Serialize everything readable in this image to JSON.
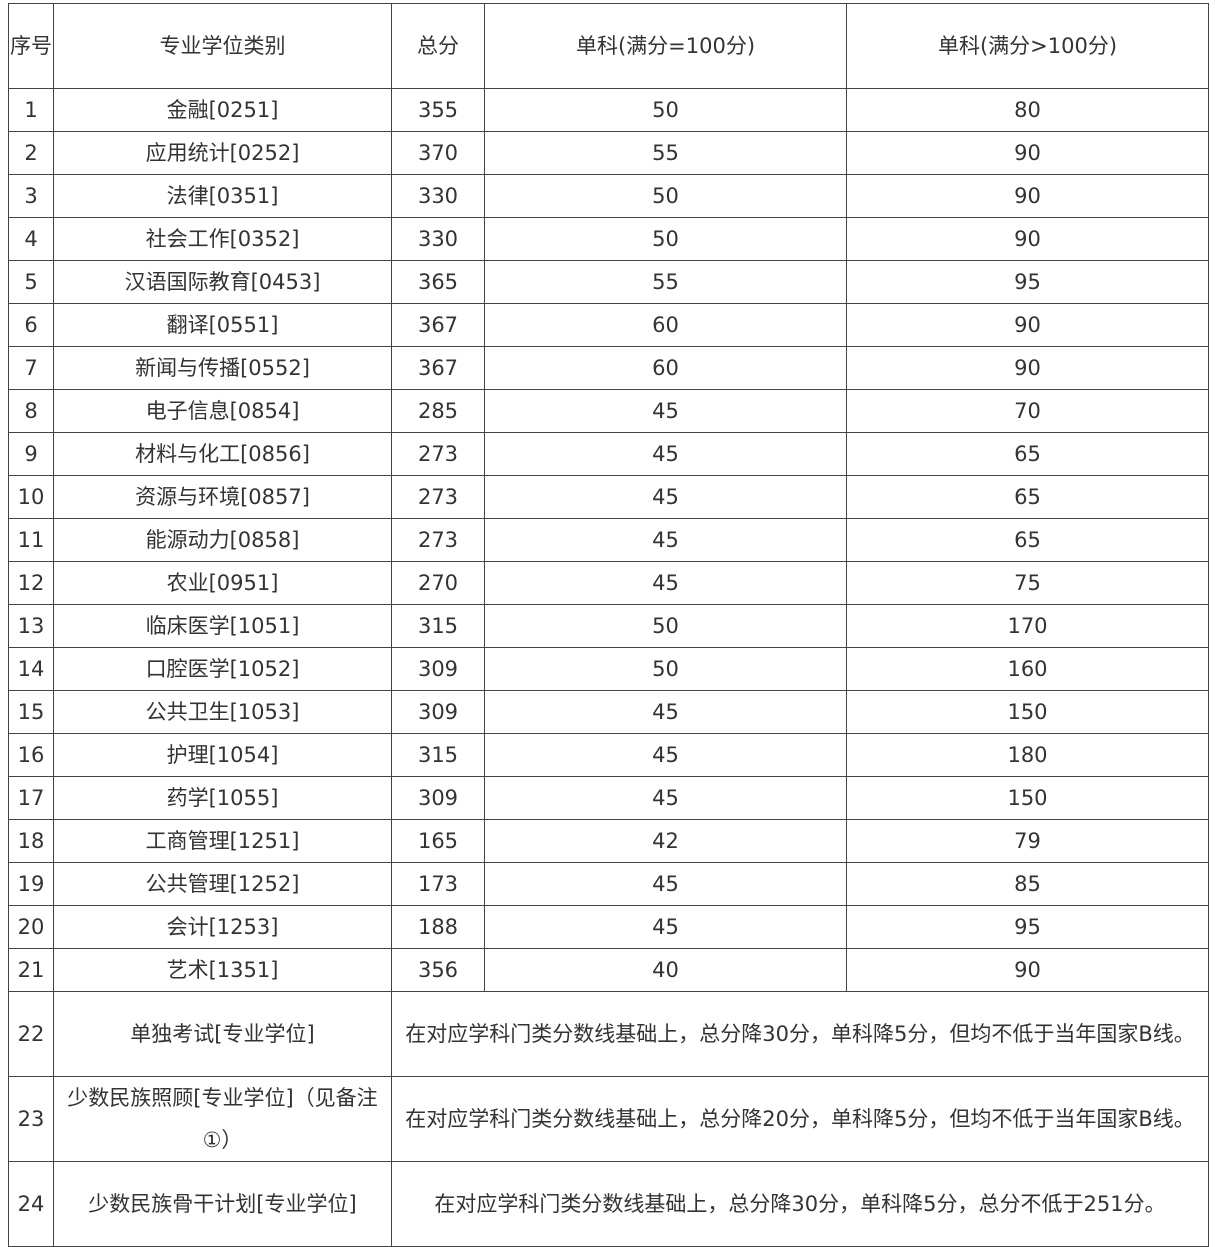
{
  "headers": {
    "idx": "序号",
    "category": "专业学位类别",
    "total": "总分",
    "single100": "单科(满分=100分)",
    "single_over100": "单科(满分>100分)"
  },
  "rows": [
    {
      "idx": "1",
      "category": "金融[0251]",
      "total": "355",
      "s1": "50",
      "s2": "80"
    },
    {
      "idx": "2",
      "category": "应用统计[0252]",
      "total": "370",
      "s1": "55",
      "s2": "90"
    },
    {
      "idx": "3",
      "category": "法律[0351]",
      "total": "330",
      "s1": "50",
      "s2": "90"
    },
    {
      "idx": "4",
      "category": "社会工作[0352]",
      "total": "330",
      "s1": "50",
      "s2": "90"
    },
    {
      "idx": "5",
      "category": "汉语国际教育[0453]",
      "total": "365",
      "s1": "55",
      "s2": "95"
    },
    {
      "idx": "6",
      "category": "翻译[0551]",
      "total": "367",
      "s1": "60",
      "s2": "90"
    },
    {
      "idx": "7",
      "category": "新闻与传播[0552]",
      "total": "367",
      "s1": "60",
      "s2": "90"
    },
    {
      "idx": "8",
      "category": "电子信息[0854]",
      "total": "285",
      "s1": "45",
      "s2": "70"
    },
    {
      "idx": "9",
      "category": "材料与化工[0856]",
      "total": "273",
      "s1": "45",
      "s2": "65"
    },
    {
      "idx": "10",
      "category": "资源与环境[0857]",
      "total": "273",
      "s1": "45",
      "s2": "65"
    },
    {
      "idx": "11",
      "category": "能源动力[0858]",
      "total": "273",
      "s1": "45",
      "s2": "65"
    },
    {
      "idx": "12",
      "category": "农业[0951]",
      "total": "270",
      "s1": "45",
      "s2": "75"
    },
    {
      "idx": "13",
      "category": "临床医学[1051]",
      "total": "315",
      "s1": "50",
      "s2": "170"
    },
    {
      "idx": "14",
      "category": "口腔医学[1052]",
      "total": "309",
      "s1": "50",
      "s2": "160"
    },
    {
      "idx": "15",
      "category": "公共卫生[1053]",
      "total": "309",
      "s1": "45",
      "s2": "150"
    },
    {
      "idx": "16",
      "category": "护理[1054]",
      "total": "315",
      "s1": "45",
      "s2": "180"
    },
    {
      "idx": "17",
      "category": "药学[1055]",
      "total": "309",
      "s1": "45",
      "s2": "150"
    },
    {
      "idx": "18",
      "category": "工商管理[1251]",
      "total": "165",
      "s1": "42",
      "s2": "79"
    },
    {
      "idx": "19",
      "category": "公共管理[1252]",
      "total": "173",
      "s1": "45",
      "s2": "85"
    },
    {
      "idx": "20",
      "category": "会计[1253]",
      "total": "188",
      "s1": "45",
      "s2": "95"
    },
    {
      "idx": "21",
      "category": "艺术[1351]",
      "total": "356",
      "s1": "40",
      "s2": "90"
    }
  ],
  "special": [
    {
      "idx": "22",
      "category": "单独考试[专业学位]",
      "note": "在对应学科门类分数线基础上，总分降30分，单科降5分，但均不低于当年国家B线。"
    },
    {
      "idx": "23",
      "category": "少数民族照顾[专业学位]（见备注①）",
      "note": "在对应学科门类分数线基础上，总分降20分，单科降5分，但均不低于当年国家B线。"
    },
    {
      "idx": "24",
      "category": "少数民族骨干计划[专业学位]",
      "note": "在对应学科门类分数线基础上，总分降30分，单科降5分，总分不低于251分。"
    }
  ]
}
